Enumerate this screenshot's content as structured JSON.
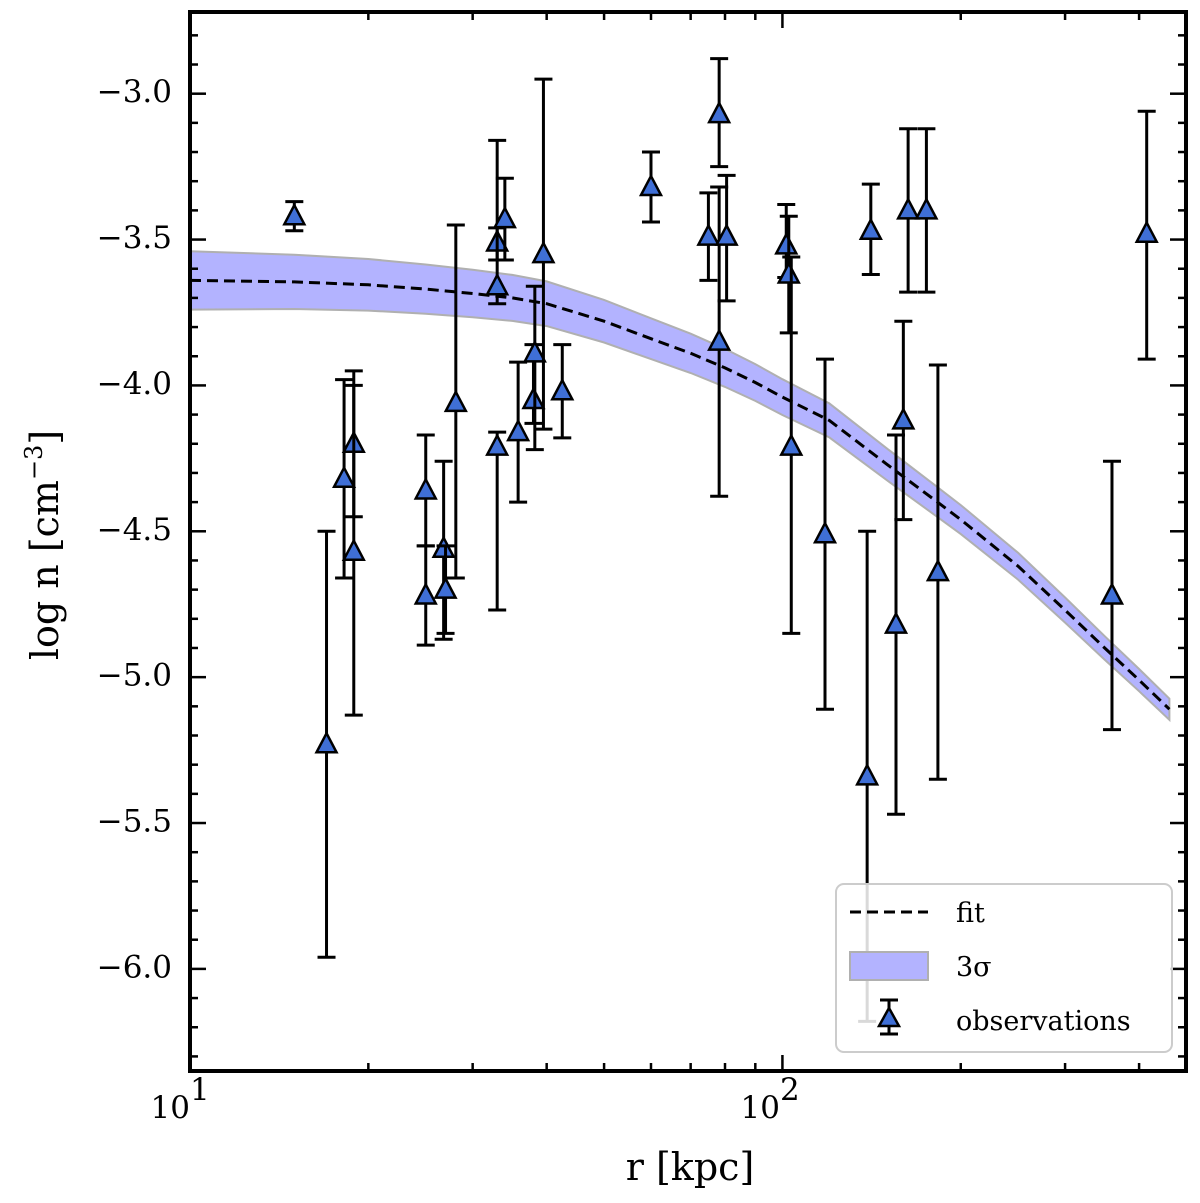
{
  "chart_data": {
    "type": "scatter",
    "xscale": "log",
    "xlim": [
      10,
      480
    ],
    "ylim": [
      -6.35,
      -2.72
    ],
    "xlabel": "r [kpc]",
    "ylabel": "log n [cm",
    "ylabel_exponent": "−3",
    "ylabel_close": "]",
    "x_ticks": [
      {
        "value": 10,
        "base": "10",
        "exp": "1"
      },
      {
        "value": 100,
        "base": "10",
        "exp": "2"
      }
    ],
    "y_ticks": [
      {
        "value": -3.0,
        "label": "−3.0"
      },
      {
        "value": -3.5,
        "label": "−3.5"
      },
      {
        "value": -4.0,
        "label": "−4.0"
      },
      {
        "value": -4.5,
        "label": "−4.5"
      },
      {
        "value": -5.0,
        "label": "−5.0"
      },
      {
        "value": -5.5,
        "label": "−5.5"
      },
      {
        "value": -6.0,
        "label": "−6.0"
      }
    ],
    "y_minor_step": 0.1,
    "fit": {
      "name": "fit",
      "x": [
        10,
        15,
        20,
        25,
        30,
        35,
        40,
        50,
        60,
        70,
        80,
        90,
        100,
        120,
        150,
        180,
        200,
        250,
        300,
        350,
        400,
        450
      ],
      "y": [
        -3.64,
        -3.645,
        -3.655,
        -3.67,
        -3.685,
        -3.7,
        -3.72,
        -3.78,
        -3.84,
        -3.89,
        -3.94,
        -3.99,
        -4.04,
        -4.12,
        -4.27,
        -4.39,
        -4.46,
        -4.62,
        -4.77,
        -4.9,
        -5.01,
        -5.11
      ]
    },
    "band": {
      "name": "3σ",
      "color": "#b3b3ff",
      "half_width_low_r": 0.1,
      "half_width_high_r": 0.035
    },
    "observations": {
      "name": "observations",
      "marker_color": "#3f6fd6",
      "points": [
        {
          "x": 15.0,
          "y": -3.42,
          "lo": -3.47,
          "hi": -3.37
        },
        {
          "x": 17.0,
          "y": -5.23,
          "lo": -5.96,
          "hi": -4.5
        },
        {
          "x": 18.2,
          "y": -4.32,
          "lo": -4.66,
          "hi": -3.98
        },
        {
          "x": 18.9,
          "y": -4.2,
          "lo": -4.45,
          "hi": -3.95
        },
        {
          "x": 18.9,
          "y": -4.57,
          "lo": -5.13,
          "hi": -4.0
        },
        {
          "x": 25.0,
          "y": -4.36,
          "lo": -4.55,
          "hi": -4.17
        },
        {
          "x": 25.0,
          "y": -4.72,
          "lo": -4.89,
          "hi": -4.55
        },
        {
          "x": 26.8,
          "y": -4.56,
          "lo": -4.87,
          "hi": -4.26
        },
        {
          "x": 27.0,
          "y": -4.7,
          "lo": -4.85,
          "hi": -4.55
        },
        {
          "x": 28.1,
          "y": -4.06,
          "lo": -4.66,
          "hi": -3.45
        },
        {
          "x": 33.0,
          "y": -4.21,
          "lo": -4.77,
          "hi": -4.16
        },
        {
          "x": 33.0,
          "y": -3.51,
          "lo": -3.57,
          "hi": -3.46
        },
        {
          "x": 33.0,
          "y": -3.66,
          "lo": -3.72,
          "hi": -3.16
        },
        {
          "x": 34.0,
          "y": -3.43,
          "lo": -3.57,
          "hi": -3.29
        },
        {
          "x": 35.8,
          "y": -4.16,
          "lo": -4.4,
          "hi": -3.92
        },
        {
          "x": 38.0,
          "y": -4.05,
          "lo": -4.13,
          "hi": -3.86
        },
        {
          "x": 38.2,
          "y": -3.89,
          "lo": -4.22,
          "hi": -3.66
        },
        {
          "x": 39.5,
          "y": -3.55,
          "lo": -4.15,
          "hi": -2.95
        },
        {
          "x": 42.5,
          "y": -4.02,
          "lo": -4.18,
          "hi": -3.86
        },
        {
          "x": 60.0,
          "y": -3.32,
          "lo": -3.44,
          "hi": -3.2
        },
        {
          "x": 75.0,
          "y": -3.49,
          "lo": -3.64,
          "hi": -3.34
        },
        {
          "x": 78.2,
          "y": -3.07,
          "lo": -3.25,
          "hi": -2.88
        },
        {
          "x": 78.2,
          "y": -3.85,
          "lo": -4.38,
          "hi": -3.32
        },
        {
          "x": 80.5,
          "y": -3.49,
          "lo": -3.71,
          "hi": -3.28
        },
        {
          "x": 101.5,
          "y": -3.52,
          "lo": -3.63,
          "hi": -3.38
        },
        {
          "x": 102.5,
          "y": -3.62,
          "lo": -3.82,
          "hi": -3.42
        },
        {
          "x": 103.5,
          "y": -4.21,
          "lo": -4.85,
          "hi": -3.56
        },
        {
          "x": 118.0,
          "y": -4.51,
          "lo": -5.11,
          "hi": -3.91
        },
        {
          "x": 139.0,
          "y": -5.34,
          "lo": -6.18,
          "hi": -4.5
        },
        {
          "x": 141.0,
          "y": -3.47,
          "lo": -3.62,
          "hi": -3.31
        },
        {
          "x": 155.5,
          "y": -4.82,
          "lo": -5.47,
          "hi": -4.17
        },
        {
          "x": 160.0,
          "y": -4.12,
          "lo": -4.46,
          "hi": -3.78
        },
        {
          "x": 163.0,
          "y": -3.4,
          "lo": -3.68,
          "hi": -3.12
        },
        {
          "x": 175.0,
          "y": -3.4,
          "lo": -3.68,
          "hi": -3.12
        },
        {
          "x": 183.0,
          "y": -4.64,
          "lo": -5.35,
          "hi": -3.93
        },
        {
          "x": 360.0,
          "y": -4.72,
          "lo": -5.18,
          "hi": -4.26
        },
        {
          "x": 412.0,
          "y": -3.48,
          "lo": -3.91,
          "hi": -3.06
        }
      ]
    },
    "legend": {
      "position": "lower-right",
      "entries": [
        "fit",
        "3σ",
        "observations"
      ]
    }
  }
}
